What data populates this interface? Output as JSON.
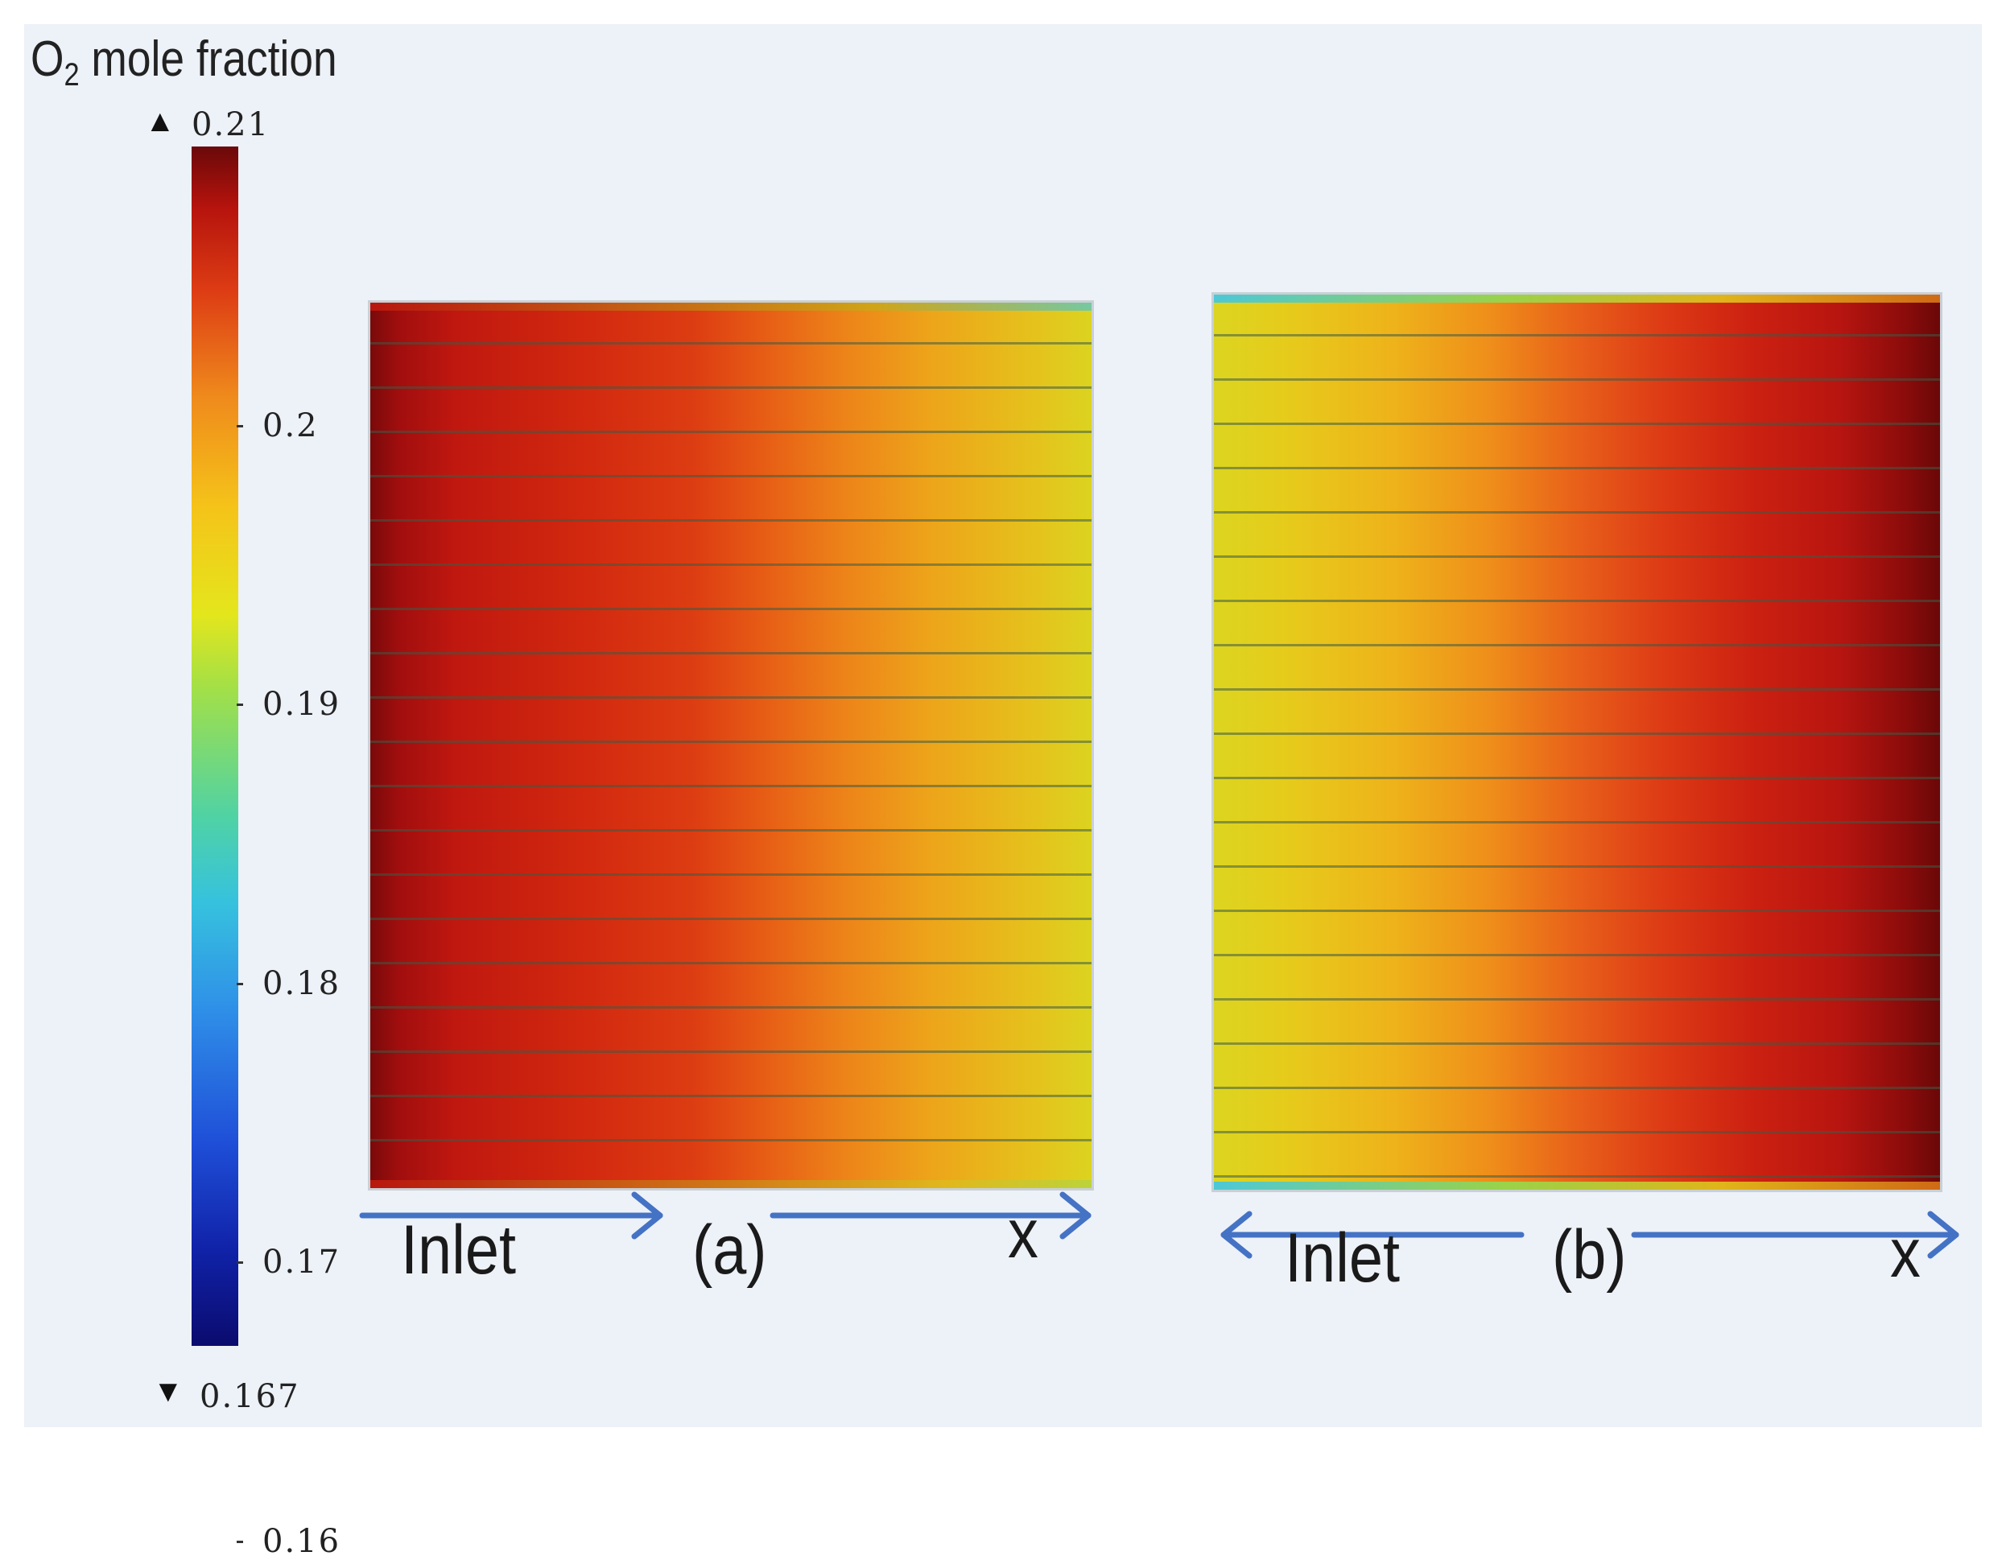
{
  "chart_data": {
    "type": "heatmap",
    "colorbar": {
      "title_main": "O",
      "title_sub": "2",
      "title_rest": " mole fraction",
      "max_label": "0.21",
      "min_label": "0.167",
      "range": [
        0.167,
        0.21
      ],
      "ticks": [
        "0.2",
        "0.19",
        "0.18",
        "0.17",
        "0.16"
      ],
      "tick_values": [
        0.2,
        0.19,
        0.18,
        0.17,
        0.16
      ],
      "colormap": "rainbow (blue to dark red)"
    },
    "panels": [
      {
        "label": "(a)",
        "inlet_label": "Inlet",
        "axis_label": "x",
        "inlet_arrow_direction": "right",
        "o2_fraction_inlet_side": 0.21,
        "o2_fraction_outlet_side": 0.193,
        "channels": 20
      },
      {
        "label": "(b)",
        "inlet_label": "Inlet",
        "axis_label": "x",
        "inlet_arrow_direction": "left",
        "o2_fraction_inlet_side": 0.21,
        "o2_fraction_outlet_side": 0.193,
        "channels": 20
      }
    ]
  },
  "colors": {
    "arrow": "#4472c4",
    "background": "#edf1f8"
  }
}
